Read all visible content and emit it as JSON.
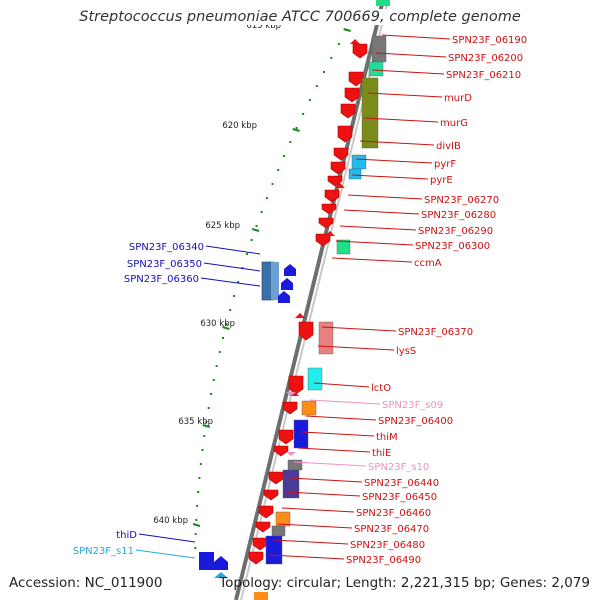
{
  "title": "Streptococcus pneumoniae ATCC 700669, complete genome",
  "footer": {
    "accession": "Accession: NC_011900",
    "summary": "Topology: circular; Length: 2,221,315 bp; Genes: 2,079"
  },
  "colors": {
    "backbone": "#8c8c8c",
    "scale_ticks": "#1a8a1a",
    "gene_default": "#ee1111",
    "label_red": "#cc1111",
    "label_blue": "#1111bb",
    "label_pink": "#f090c0",
    "label_cyan": "#22aadd"
  },
  "scale": {
    "unit": "kbp",
    "ticks": [
      {
        "label": "615 kbp",
        "kbp": 615
      },
      {
        "label": "620 kbp",
        "kbp": 620
      },
      {
        "label": "625 kbp",
        "kbp": 625
      },
      {
        "label": "630 kbp",
        "kbp": 630
      },
      {
        "label": "635 kbp",
        "kbp": 635
      },
      {
        "label": "640 kbp",
        "kbp": 640
      }
    ]
  },
  "genes": [
    {
      "name": "SPN23F_06190",
      "color": "#cc1111"
    },
    {
      "name": "SPN23F_06200",
      "color": "#cc1111"
    },
    {
      "name": "SPN23F_06210",
      "color": "#cc1111"
    },
    {
      "name": "murD",
      "color": "#cc1111"
    },
    {
      "name": "murG",
      "color": "#cc1111"
    },
    {
      "name": "divIB",
      "color": "#cc1111"
    },
    {
      "name": "pyrF",
      "color": "#cc1111"
    },
    {
      "name": "pyrE",
      "color": "#cc1111"
    },
    {
      "name": "SPN23F_06270",
      "color": "#cc1111"
    },
    {
      "name": "SPN23F_06280",
      "color": "#cc1111"
    },
    {
      "name": "SPN23F_06290",
      "color": "#cc1111"
    },
    {
      "name": "SPN23F_06300",
      "color": "#cc1111"
    },
    {
      "name": "ccmA",
      "color": "#cc1111"
    },
    {
      "name": "SPN23F_06340",
      "color": "#1111bb"
    },
    {
      "name": "SPN23F_06350",
      "color": "#1111bb"
    },
    {
      "name": "SPN23F_06360",
      "color": "#1111bb"
    },
    {
      "name": "SPN23F_06370",
      "color": "#cc1111"
    },
    {
      "name": "lysS",
      "color": "#cc1111"
    },
    {
      "name": "lctO",
      "color": "#cc1111"
    },
    {
      "name": "SPN23F_s09",
      "color": "#f090c0"
    },
    {
      "name": "SPN23F_06400",
      "color": "#cc1111"
    },
    {
      "name": "thiM",
      "color": "#cc1111"
    },
    {
      "name": "thiE",
      "color": "#cc1111"
    },
    {
      "name": "SPN23F_s10",
      "color": "#f090c0"
    },
    {
      "name": "SPN23F_06440",
      "color": "#cc1111"
    },
    {
      "name": "SPN23F_06450",
      "color": "#cc1111"
    },
    {
      "name": "SPN23F_06460",
      "color": "#cc1111"
    },
    {
      "name": "SPN23F_06470",
      "color": "#cc1111"
    },
    {
      "name": "SPN23F_06480",
      "color": "#cc1111"
    },
    {
      "name": "SPN23F_06490",
      "color": "#cc1111"
    },
    {
      "name": "thiD",
      "color": "#1111bb"
    },
    {
      "name": "SPN23F_s11",
      "color": "#22aadd"
    }
  ]
}
